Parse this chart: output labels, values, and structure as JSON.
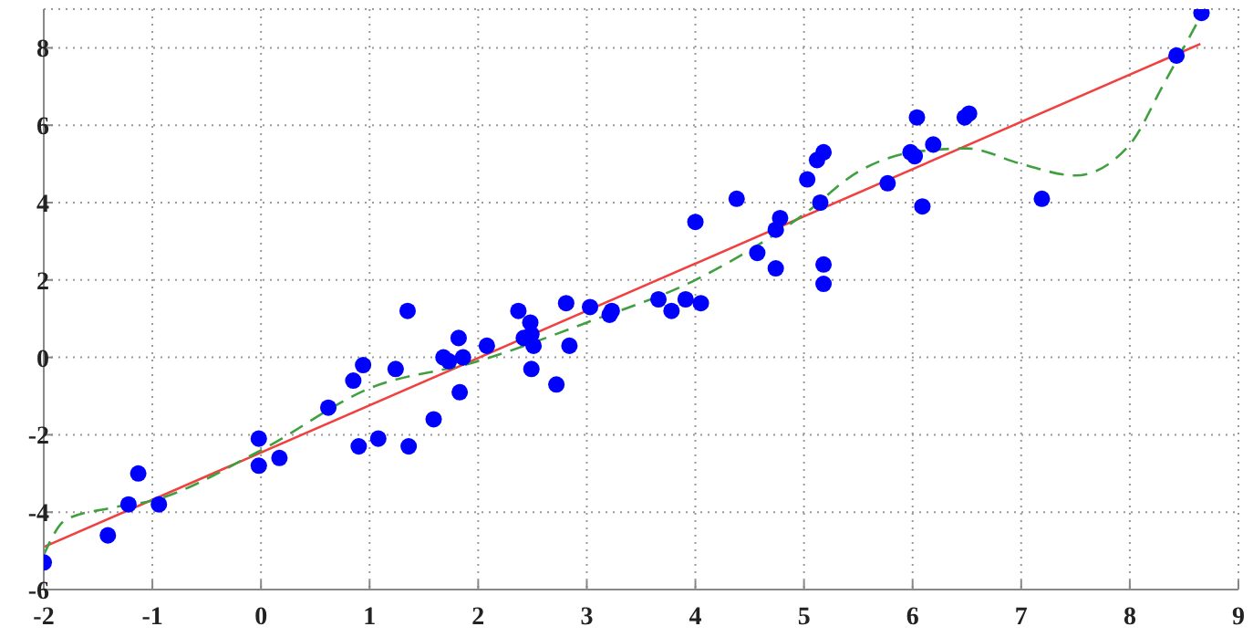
{
  "chart_data": {
    "type": "scatter",
    "xlim": [
      -2,
      9
    ],
    "ylim": [
      -6,
      9
    ],
    "xticks": [
      -2,
      -1,
      0,
      1,
      2,
      3,
      4,
      5,
      6,
      7,
      8,
      9
    ],
    "yticks": [
      -6,
      -4,
      -2,
      0,
      2,
      4,
      6,
      8
    ],
    "grid": true,
    "series": [
      {
        "marker": "circle",
        "color": "#0000ff",
        "x": [
          -2.0,
          -1.41,
          -1.22,
          -1.13,
          -0.94,
          -0.02,
          -0.02,
          0.17,
          0.62,
          0.85,
          0.94,
          0.9,
          1.08,
          1.24,
          1.35,
          1.36,
          1.59,
          1.68,
          1.73,
          1.82,
          1.83,
          1.86,
          2.08,
          2.37,
          2.42,
          2.48,
          2.49,
          2.49,
          2.51,
          2.72,
          2.81,
          2.84,
          3.03,
          3.21,
          3.23,
          3.66,
          3.78,
          3.91,
          4.0,
          4.05,
          4.38,
          4.57,
          4.74,
          4.74,
          4.78,
          5.03,
          5.12,
          5.18,
          5.15,
          5.18,
          5.18,
          5.77,
          5.98,
          6.02,
          6.04,
          6.09,
          6.19,
          6.48,
          6.52,
          7.19,
          8.43,
          8.66
        ],
        "values": [
          -5.3,
          -4.6,
          -3.8,
          -3.0,
          -3.8,
          -2.1,
          -2.8,
          -2.6,
          -1.3,
          -0.6,
          -0.2,
          -2.3,
          -2.1,
          -0.3,
          1.2,
          -2.3,
          -1.6,
          0.0,
          -0.1,
          0.5,
          -0.9,
          0.0,
          0.3,
          1.2,
          0.5,
          0.9,
          0.6,
          -0.3,
          0.3,
          -0.7,
          1.4,
          0.3,
          1.3,
          1.1,
          1.2,
          1.5,
          1.2,
          1.5,
          3.5,
          1.4,
          4.1,
          2.7,
          2.3,
          3.3,
          3.6,
          4.6,
          5.1,
          5.3,
          4.0,
          2.4,
          1.9,
          4.5,
          5.3,
          5.2,
          6.2,
          3.9,
          5.5,
          6.2,
          6.3,
          4.1,
          7.8,
          8.9
        ]
      },
      {
        "type": "line",
        "marker": "none",
        "line_style": "solid",
        "color": "#f04040",
        "x": [
          -2,
          8.65
        ],
        "values": [
          -4.9,
          8.1
        ]
      },
      {
        "type": "line",
        "marker": "none",
        "line_style": "dashed",
        "color": "#40a040",
        "x": [
          -2,
          -1.8,
          -1.4,
          -1,
          0,
          1,
          2,
          3,
          4,
          5,
          5.5,
          6,
          6.5,
          7,
          7.5,
          8,
          8.3,
          8.65
        ],
        "values": [
          -5.1,
          -4.2,
          -3.9,
          -3.7,
          -2.4,
          -0.8,
          -0.1,
          0.9,
          2.0,
          3.7,
          4.8,
          5.3,
          5.4,
          5.0,
          4.7,
          5.5,
          7.0,
          8.8
        ]
      }
    ]
  }
}
